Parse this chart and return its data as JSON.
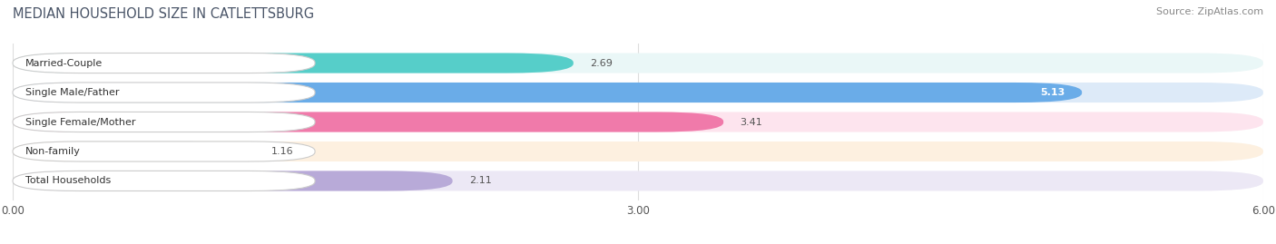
{
  "title": "MEDIAN HOUSEHOLD SIZE IN CATLETTSBURG",
  "source": "Source: ZipAtlas.com",
  "categories": [
    "Married-Couple",
    "Single Male/Father",
    "Single Female/Mother",
    "Non-family",
    "Total Households"
  ],
  "values": [
    2.69,
    5.13,
    3.41,
    1.16,
    2.11
  ],
  "bar_colors": [
    "#56cec9",
    "#6aace8",
    "#f07aaa",
    "#f5c896",
    "#b8aad8"
  ],
  "bar_bg_colors": [
    "#eaf7f7",
    "#ddeaf8",
    "#fde4ee",
    "#fdf0e0",
    "#ece8f5"
  ],
  "xlim": [
    0,
    6.0
  ],
  "xtick_labels": [
    "0.00",
    "3.00",
    "6.00"
  ],
  "xtick_values": [
    0.0,
    3.0,
    6.0
  ],
  "label_color_outside": "#555555",
  "label_color_inside": "#ffffff",
  "bg_color": "#ffffff",
  "title_color": "#4a5568",
  "source_color": "#888888",
  "figsize": [
    14.06,
    2.69
  ],
  "dpi": 100
}
